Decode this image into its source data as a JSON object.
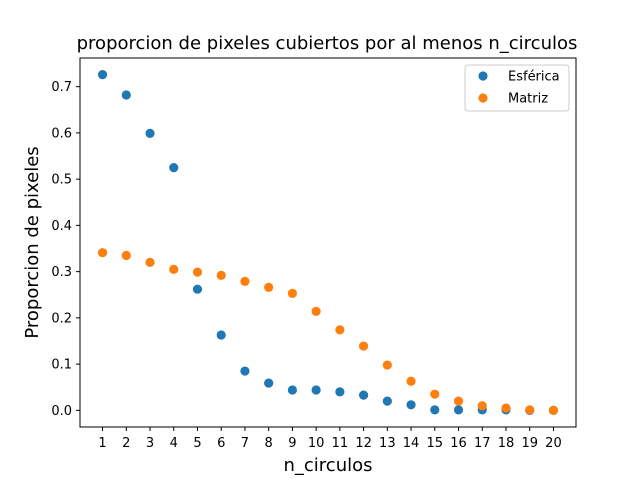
{
  "chart_data": {
    "type": "scatter",
    "title": "proporcion de pixeles cubiertos por al menos n_circulos",
    "xlabel": "n_circulos",
    "ylabel": "Proporcion de pixeles",
    "x": [
      1,
      2,
      3,
      4,
      5,
      6,
      7,
      8,
      9,
      10,
      11,
      12,
      13,
      14,
      15,
      16,
      17,
      18,
      19,
      20
    ],
    "xticks": [
      "1",
      "2",
      "3",
      "4",
      "5",
      "6",
      "7",
      "8",
      "9",
      "10",
      "11",
      "12",
      "13",
      "14",
      "15",
      "16",
      "17",
      "18",
      "19",
      "20"
    ],
    "yticks": [
      "0.0",
      "0.1",
      "0.2",
      "0.3",
      "0.4",
      "0.5",
      "0.6",
      "0.7"
    ],
    "xlim": [
      0.05,
      20.95
    ],
    "ylim": [
      -0.036,
      0.762
    ],
    "legend_position": "top-right",
    "grid": false,
    "series": [
      {
        "name": "Esférica",
        "color": "#1f77b4",
        "values": [
          0.726,
          0.682,
          0.599,
          0.525,
          0.262,
          0.163,
          0.085,
          0.059,
          0.044,
          0.044,
          0.04,
          0.033,
          0.02,
          0.012,
          0.001,
          0.001,
          0.001,
          0.001,
          0.0,
          0.0
        ]
      },
      {
        "name": "Matriz",
        "color": "#ff7f0e",
        "values": [
          0.341,
          0.335,
          0.32,
          0.305,
          0.299,
          0.292,
          0.279,
          0.266,
          0.253,
          0.214,
          0.174,
          0.139,
          0.098,
          0.063,
          0.035,
          0.02,
          0.01,
          0.005,
          0.001,
          0.0
        ]
      }
    ]
  }
}
